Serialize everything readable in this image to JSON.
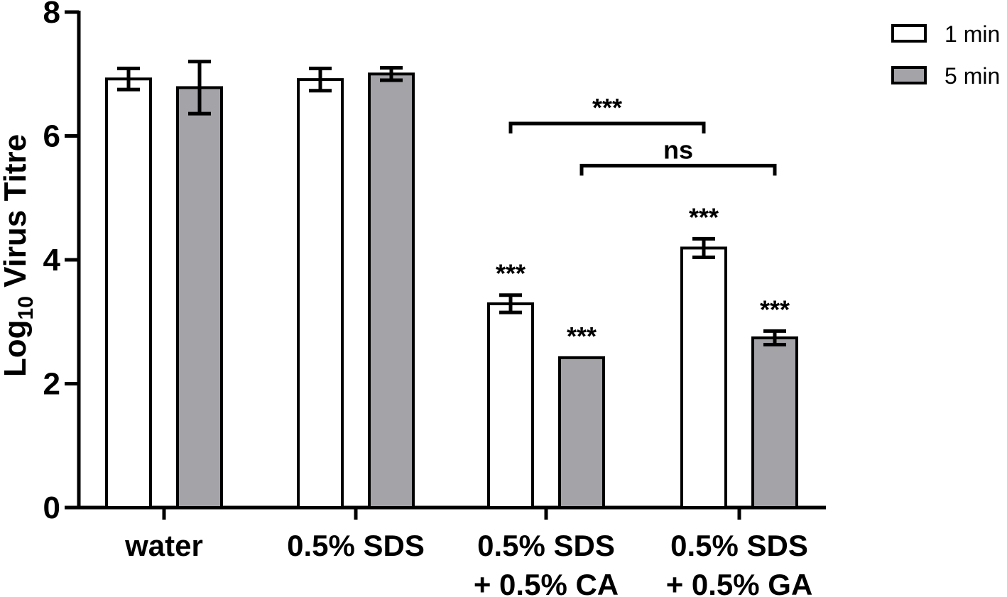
{
  "chart_data": {
    "type": "bar",
    "title": "",
    "xlabel": "",
    "ylabel_main": "Log",
    "ylabel_sub": "10",
    "ylabel_rest": " Virus Titre",
    "ylim": [
      0,
      8
    ],
    "yticks": [
      "0",
      "2",
      "4",
      "6",
      "8"
    ],
    "grid": false,
    "legend_position": "top-right",
    "categories": [
      {
        "line1": "water",
        "line2": ""
      },
      {
        "line1": "0.5% SDS",
        "line2": ""
      },
      {
        "line1": "0.5% SDS",
        "line2": "+ 0.5% CA"
      },
      {
        "line1": "0.5% SDS",
        "line2": "+ 0.5% GA"
      }
    ],
    "series": [
      {
        "name": "1 min",
        "color": "#ffffff",
        "values": [
          6.92,
          6.91,
          3.29,
          4.19
        ],
        "errors": [
          0.17,
          0.18,
          0.14,
          0.15
        ],
        "annotations": [
          "",
          "",
          "***",
          "***"
        ]
      },
      {
        "name": "5 min",
        "color": "#a3a3a8",
        "values": [
          6.78,
          7.0,
          2.42,
          2.74
        ],
        "errors": [
          0.42,
          0.1,
          0.0,
          0.11
        ],
        "annotations": [
          "",
          "",
          "***",
          "***"
        ]
      }
    ],
    "comparisons": [
      {
        "label": "***",
        "from_category": 2,
        "to_category": 3,
        "from_series": 0,
        "to_series": 0,
        "y": 6.2
      },
      {
        "label": "ns",
        "from_category": 2,
        "to_category": 3,
        "from_series": 1,
        "to_series": 1,
        "y": 5.52
      }
    ]
  }
}
